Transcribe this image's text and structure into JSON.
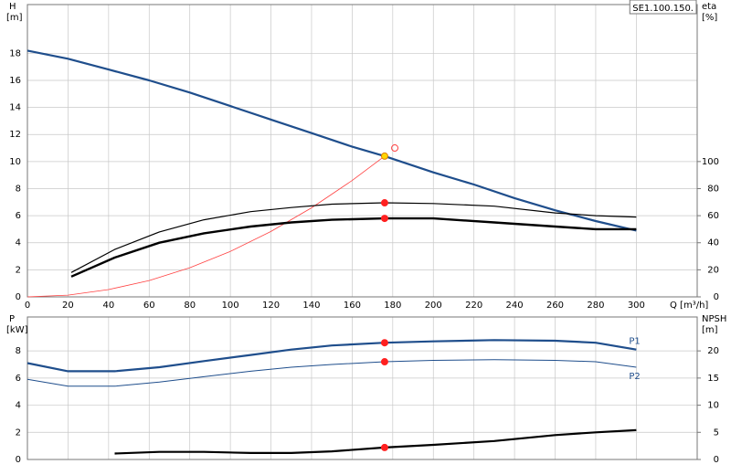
{
  "chart_data": [
    {
      "type": "line",
      "title": "SE1.100.150.",
      "ylabel": "H",
      "yunit": "[m]",
      "y2label": "eta",
      "y2unit": "[%]",
      "xlabel": "Q [m³/h]",
      "xlim": [
        0,
        330
      ],
      "xticks": [
        0,
        20,
        40,
        60,
        80,
        100,
        120,
        140,
        160,
        180,
        200,
        220,
        240,
        260,
        280,
        300
      ],
      "ylim": [
        0,
        21.6
      ],
      "yticks": [
        0,
        2,
        4,
        6,
        8,
        10,
        12,
        14,
        16,
        18
      ],
      "y2lim": [
        0,
        216
      ],
      "y2ticks": [
        0,
        20,
        40,
        60,
        80,
        100
      ],
      "grid": true,
      "xtick_labels": true,
      "series": [
        {
          "color": "#1f4e8c",
          "linewidth": 2.2,
          "x": [
            0,
            20,
            40,
            60,
            80,
            100,
            120,
            140,
            160,
            176,
            200,
            220,
            240,
            260,
            280,
            300
          ],
          "values": [
            18.2,
            17.6,
            16.8,
            16.0,
            15.1,
            14.1,
            13.1,
            12.1,
            11.1,
            10.4,
            9.2,
            8.3,
            7.3,
            6.4,
            5.6,
            4.9
          ]
        },
        {
          "color": "#ff4040",
          "linewidth": 0.8,
          "x": [
            0,
            20,
            40,
            60,
            80,
            100,
            120,
            140,
            160,
            176
          ],
          "values": [
            0,
            0.13,
            0.54,
            1.21,
            2.15,
            3.36,
            4.83,
            6.58,
            8.6,
            10.4
          ]
        },
        {
          "color": "#000000",
          "linewidth": 1.2,
          "axis": "y2",
          "x": [
            21.6,
            43,
            65,
            87,
            110,
            130,
            150,
            176,
            200,
            230,
            260,
            280,
            300
          ],
          "values": [
            18,
            35,
            48,
            57,
            63,
            66,
            68.5,
            69.5,
            69,
            67,
            62,
            60,
            59
          ]
        },
        {
          "color": "#000000",
          "linewidth": 2.4,
          "axis": "y2",
          "x": [
            21.6,
            43,
            65,
            87,
            110,
            130,
            150,
            176,
            200,
            230,
            260,
            280,
            300
          ],
          "values": [
            15,
            29,
            40,
            47,
            52,
            55,
            57,
            58,
            58,
            55,
            52,
            50,
            50
          ]
        }
      ],
      "points": [
        {
          "x": 176,
          "y": 10.4,
          "color": "#ffd700",
          "stroke": "#e08000"
        },
        {
          "x": 181,
          "y": 11,
          "color": "none",
          "stroke": "#ff4040"
        },
        {
          "x": 176,
          "y": 69.5,
          "axis": "y2",
          "color": "#ff2020",
          "stroke": "#ff2020"
        },
        {
          "x": 176,
          "y": 58,
          "axis": "y2",
          "color": "#ff2020",
          "stroke": "#ff2020"
        }
      ]
    },
    {
      "type": "line",
      "ylabel": "P",
      "yunit": "[kW]",
      "y2label": "NPSH",
      "y2unit": "[m]",
      "xlim": [
        0,
        330
      ],
      "xticks": [
        0,
        20,
        40,
        60,
        80,
        100,
        120,
        140,
        160,
        180,
        200,
        220,
        240,
        260,
        280,
        300
      ],
      "ylim": [
        0,
        10.5
      ],
      "yticks": [
        0,
        2,
        4,
        6,
        8
      ],
      "y2lim": [
        0,
        26.25
      ],
      "y2ticks": [
        0,
        5,
        10,
        15,
        20
      ],
      "grid": true,
      "xtick_labels": false,
      "series": [
        {
          "name": "P1",
          "color": "#1f4e8c",
          "linewidth": 2.2,
          "x": [
            0,
            20,
            43,
            65,
            87,
            110,
            130,
            150,
            176,
            200,
            230,
            260,
            280,
            300
          ],
          "values": [
            7.1,
            6.5,
            6.5,
            6.8,
            7.25,
            7.7,
            8.1,
            8.4,
            8.6,
            8.7,
            8.8,
            8.75,
            8.6,
            8.1
          ]
        },
        {
          "name": "P2",
          "color": "#1f4e8c",
          "linewidth": 1,
          "x": [
            0,
            20,
            43,
            65,
            87,
            110,
            130,
            150,
            176,
            200,
            230,
            260,
            280,
            300
          ],
          "values": [
            5.9,
            5.4,
            5.4,
            5.7,
            6.1,
            6.5,
            6.8,
            7.0,
            7.2,
            7.3,
            7.35,
            7.3,
            7.2,
            6.8
          ]
        },
        {
          "color": "#000000",
          "linewidth": 2.2,
          "axis": "y2",
          "x": [
            43,
            65,
            87,
            110,
            130,
            150,
            176,
            200,
            230,
            260,
            280,
            300
          ],
          "values": [
            1.1,
            1.4,
            1.4,
            1.2,
            1.2,
            1.5,
            2.2,
            2.7,
            3.4,
            4.5,
            5.0,
            5.4
          ]
        }
      ],
      "points": [
        {
          "x": 176,
          "y": 8.6,
          "color": "#ff2020",
          "stroke": "#ff2020"
        },
        {
          "x": 176,
          "y": 7.2,
          "color": "#ff2020",
          "stroke": "#ff2020"
        },
        {
          "x": 176,
          "y": 2.2,
          "axis": "y2",
          "color": "#ff2020",
          "stroke": "#ff2020"
        }
      ]
    }
  ]
}
